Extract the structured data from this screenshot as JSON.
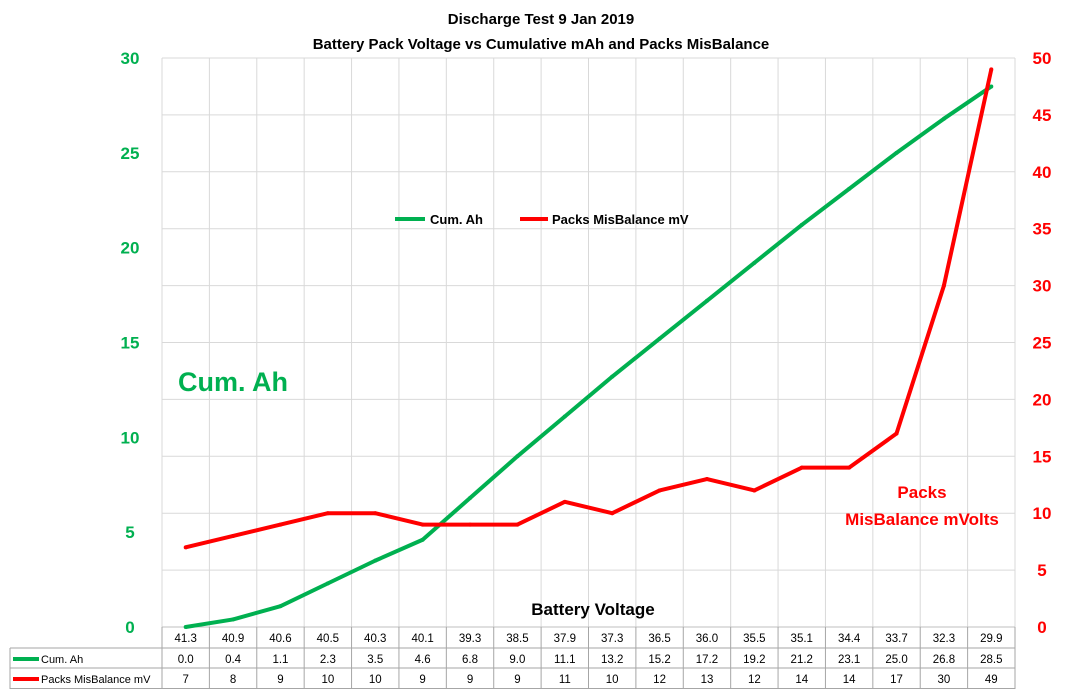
{
  "chart_data": {
    "type": "line",
    "title": "Discharge Test  9 Jan 2019",
    "subtitle": "Battery Pack Voltage vs Cumulative mAh and Packs MisBalance",
    "xlabel": "Battery Voltage",
    "categories": [
      "41.3",
      "40.9",
      "40.6",
      "40.5",
      "40.3",
      "40.1",
      "39.3",
      "38.5",
      "37.9",
      "37.3",
      "36.5",
      "36.0",
      "35.5",
      "35.1",
      "34.4",
      "33.7",
      "32.3",
      "29.9"
    ],
    "series": [
      {
        "name": "Cum. Ah",
        "axis": "left",
        "color": "#00B050",
        "values": [
          0.0,
          0.4,
          1.1,
          2.3,
          3.5,
          4.6,
          6.8,
          9.0,
          11.1,
          13.2,
          15.2,
          17.2,
          19.2,
          21.2,
          23.1,
          25.0,
          26.8,
          28.5
        ],
        "labels": [
          "0.0",
          "0.4",
          "1.1",
          "2.3",
          "3.5",
          "4.6",
          "6.8",
          "9.0",
          "11.1",
          "13.2",
          "15.2",
          "17.2",
          "19.2",
          "21.2",
          "23.1",
          "25.0",
          "26.8",
          "28.5"
        ]
      },
      {
        "name": "Packs MisBalance mV",
        "axis": "right",
        "color": "#FF0000",
        "values": [
          7,
          8,
          9,
          10,
          10,
          9,
          9,
          9,
          11,
          10,
          12,
          13,
          12,
          14,
          14,
          17,
          30,
          49
        ],
        "labels": [
          "7",
          "8",
          "9",
          "10",
          "10",
          "9",
          "9",
          "9",
          "11",
          "10",
          "12",
          "13",
          "12",
          "14",
          "14",
          "17",
          "30",
          "49"
        ]
      }
    ],
    "legend_entries": [
      "Cum. Ah",
      "Packs MisBalance mV"
    ],
    "legend_placement": "top-center inside plot",
    "y_left": {
      "ylim": [
        0,
        30
      ],
      "ticks": [
        "0",
        "5",
        "10",
        "15",
        "20",
        "25",
        "30"
      ],
      "color": "#00B050"
    },
    "y_right": {
      "ylim": [
        0,
        50
      ],
      "ticks": [
        "0",
        "5",
        "10",
        "15",
        "20",
        "25",
        "30",
        "35",
        "40",
        "45",
        "50"
      ],
      "color": "#FF0000"
    },
    "grid": true,
    "data_table": true,
    "annotations": {
      "left": "Cum. Ah",
      "right_line1": "Packs",
      "right_line2": "MisBalance  mVolts"
    }
  }
}
